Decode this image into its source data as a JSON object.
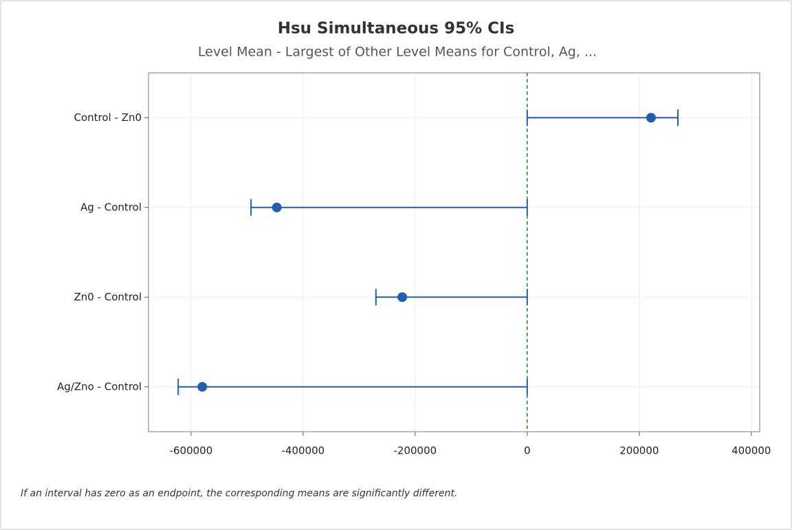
{
  "chart_data": {
    "type": "interval",
    "title": "Hsu Simultaneous 95% CIs",
    "subtitle": "Level Mean - Largest of Other Level Means for Control, Ag, ...",
    "categories": [
      "Control - Zn0",
      "Ag - Control",
      "Zn0 - Control",
      "Ag/Zno - Control"
    ],
    "values": [
      221000,
      -447000,
      -223000,
      -580000
    ],
    "lower": [
      0,
      -493000,
      -270000,
      -623000
    ],
    "upper": [
      269000,
      0,
      0,
      0
    ],
    "color": "#1f5fae",
    "reference_line": 0,
    "reference_color": "#1a8a2a",
    "xlim": [
      -676000,
      415000
    ],
    "xticks": [
      -600000,
      -400000,
      -200000,
      0,
      200000,
      400000
    ],
    "grid": true,
    "note": "If an interval has zero as an endpoint, the corresponding means are significantly different."
  }
}
